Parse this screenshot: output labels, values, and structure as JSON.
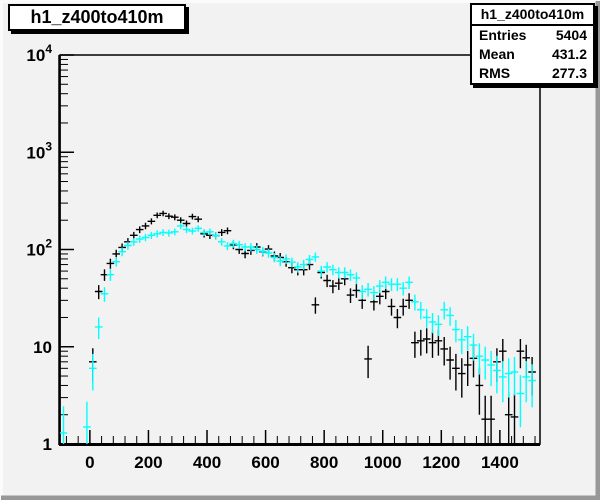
{
  "canvas": {
    "background": "#f2f2f2",
    "bevel_light": "#fbfbfb",
    "bevel_dark": "#989898",
    "frame_line_color": "#000000"
  },
  "title_box": {
    "text": "h1_z400to410m"
  },
  "stats_box": {
    "title": "h1_z400to410m",
    "rows": [
      {
        "label": "Entries",
        "value": "5404"
      },
      {
        "label": "Mean",
        "value": "431.2"
      },
      {
        "label": "RMS",
        "value": "277.3"
      }
    ]
  },
  "chart_data": {
    "type": "scatter",
    "subtype": "histogram-with-poisson-error-bars",
    "title": "h1_z400to410m",
    "xlabel": "",
    "ylabel": "",
    "grid": false,
    "legend": "none",
    "x_axis": {
      "min": -102,
      "max": 1537,
      "major_ticks": [
        0,
        200,
        400,
        600,
        800,
        1000,
        1200,
        1400
      ],
      "minor_step": 40,
      "tick_label_format": "integer"
    },
    "y_axis": {
      "scale": "log",
      "min": 1,
      "max": 10000,
      "labels": [
        {
          "value": 1,
          "base": "1",
          "exp": ""
        },
        {
          "value": 10,
          "base": "10",
          "exp": ""
        },
        {
          "value": 100,
          "base": "10",
          "exp": "2"
        },
        {
          "value": 1000,
          "base": "10",
          "exp": "3"
        },
        {
          "value": 10000,
          "base": "10",
          "exp": "4"
        }
      ]
    },
    "error_bars": "poisson_sqrt",
    "bin_width": 20,
    "series": [
      {
        "name": "h1_z400to410m (black)",
        "color": "#000000",
        "x_start": 10,
        "x_step": 20,
        "values": [
          7,
          37,
          55,
          72,
          90,
          105,
          120,
          140,
          160,
          175,
          195,
          225,
          235,
          220,
          215,
          200,
          185,
          218,
          205,
          145,
          140,
          139,
          150,
          156,
          111,
          100,
          91,
          98,
          106,
          95,
          101,
          86,
          83,
          75,
          65,
          62,
          62,
          70,
          27,
          58,
          48,
          42,
          45,
          50,
          34,
          38,
          30,
          7.5,
          29,
          33,
          37,
          26,
          20,
          26,
          30,
          11,
          11.5,
          12,
          11,
          11.5,
          9.5,
          7.3,
          6,
          5.3,
          6.5,
          7.6,
          4,
          1.8,
          1.8,
          7,
          9,
          2,
          1.9,
          9,
          7.7,
          5.5
        ]
      },
      {
        "name": "overlay (cyan)",
        "color": "#00ffff",
        "extra_points_x": [
          -90,
          -10
        ],
        "extra_points_y": [
          1.3,
          1.5
        ],
        "x_start": 10,
        "x_step": 20,
        "values": [
          6,
          16,
          35,
          55,
          75,
          95,
          110,
          120,
          128,
          133,
          140,
          145,
          150,
          148,
          152,
          175,
          160,
          155,
          165,
          150,
          152,
          139,
          120,
          109,
          115,
          112,
          106,
          106,
          100,
          96,
          92,
          83,
          76,
          80,
          74,
          66,
          70,
          79,
          84,
          60,
          66,
          62,
          58,
          58,
          55,
          51,
          37,
          39,
          36,
          42,
          46,
          44,
          44,
          40,
          46,
          29,
          24,
          20,
          18,
          17,
          24,
          21,
          15,
          11.8,
          12.7,
          10.4,
          8,
          7.3,
          6.5,
          5.7,
          4.9,
          5.3,
          5.5,
          3.3,
          4.9,
          4.5
        ]
      }
    ]
  }
}
